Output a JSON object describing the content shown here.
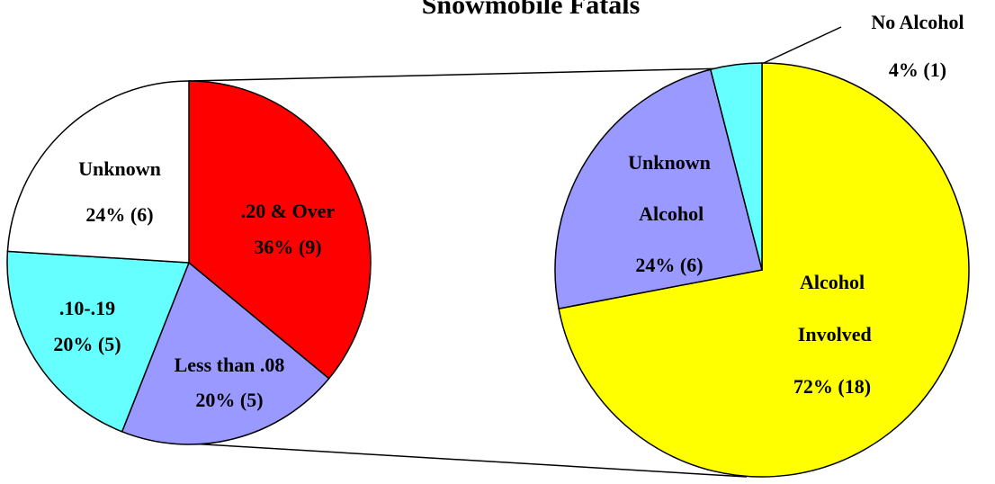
{
  "chart_data": [
    {
      "type": "pie",
      "title": "Snowmobile Fatals",
      "categories": [
        ".20 & Over",
        "Less than .08",
        ".10-.19",
        "Unknown"
      ],
      "values": [
        36,
        20,
        20,
        24
      ],
      "value_labels": [
        "36% (9)",
        "20% (5)",
        "20% (5)",
        "24% (6)"
      ],
      "colors": [
        "#ff0000",
        "#9999ff",
        "#66ffff",
        "#ffffff"
      ]
    },
    {
      "type": "pie",
      "categories": [
        "Alcohol Involved",
        "Unknown Alcohol",
        "No Alcohol"
      ],
      "values": [
        72,
        24,
        4
      ],
      "value_labels": [
        "72% (18)",
        "24% (6)",
        "4% (1)"
      ],
      "colors": [
        "#ffff00",
        "#9999ff",
        "#66ffff"
      ]
    }
  ]
}
